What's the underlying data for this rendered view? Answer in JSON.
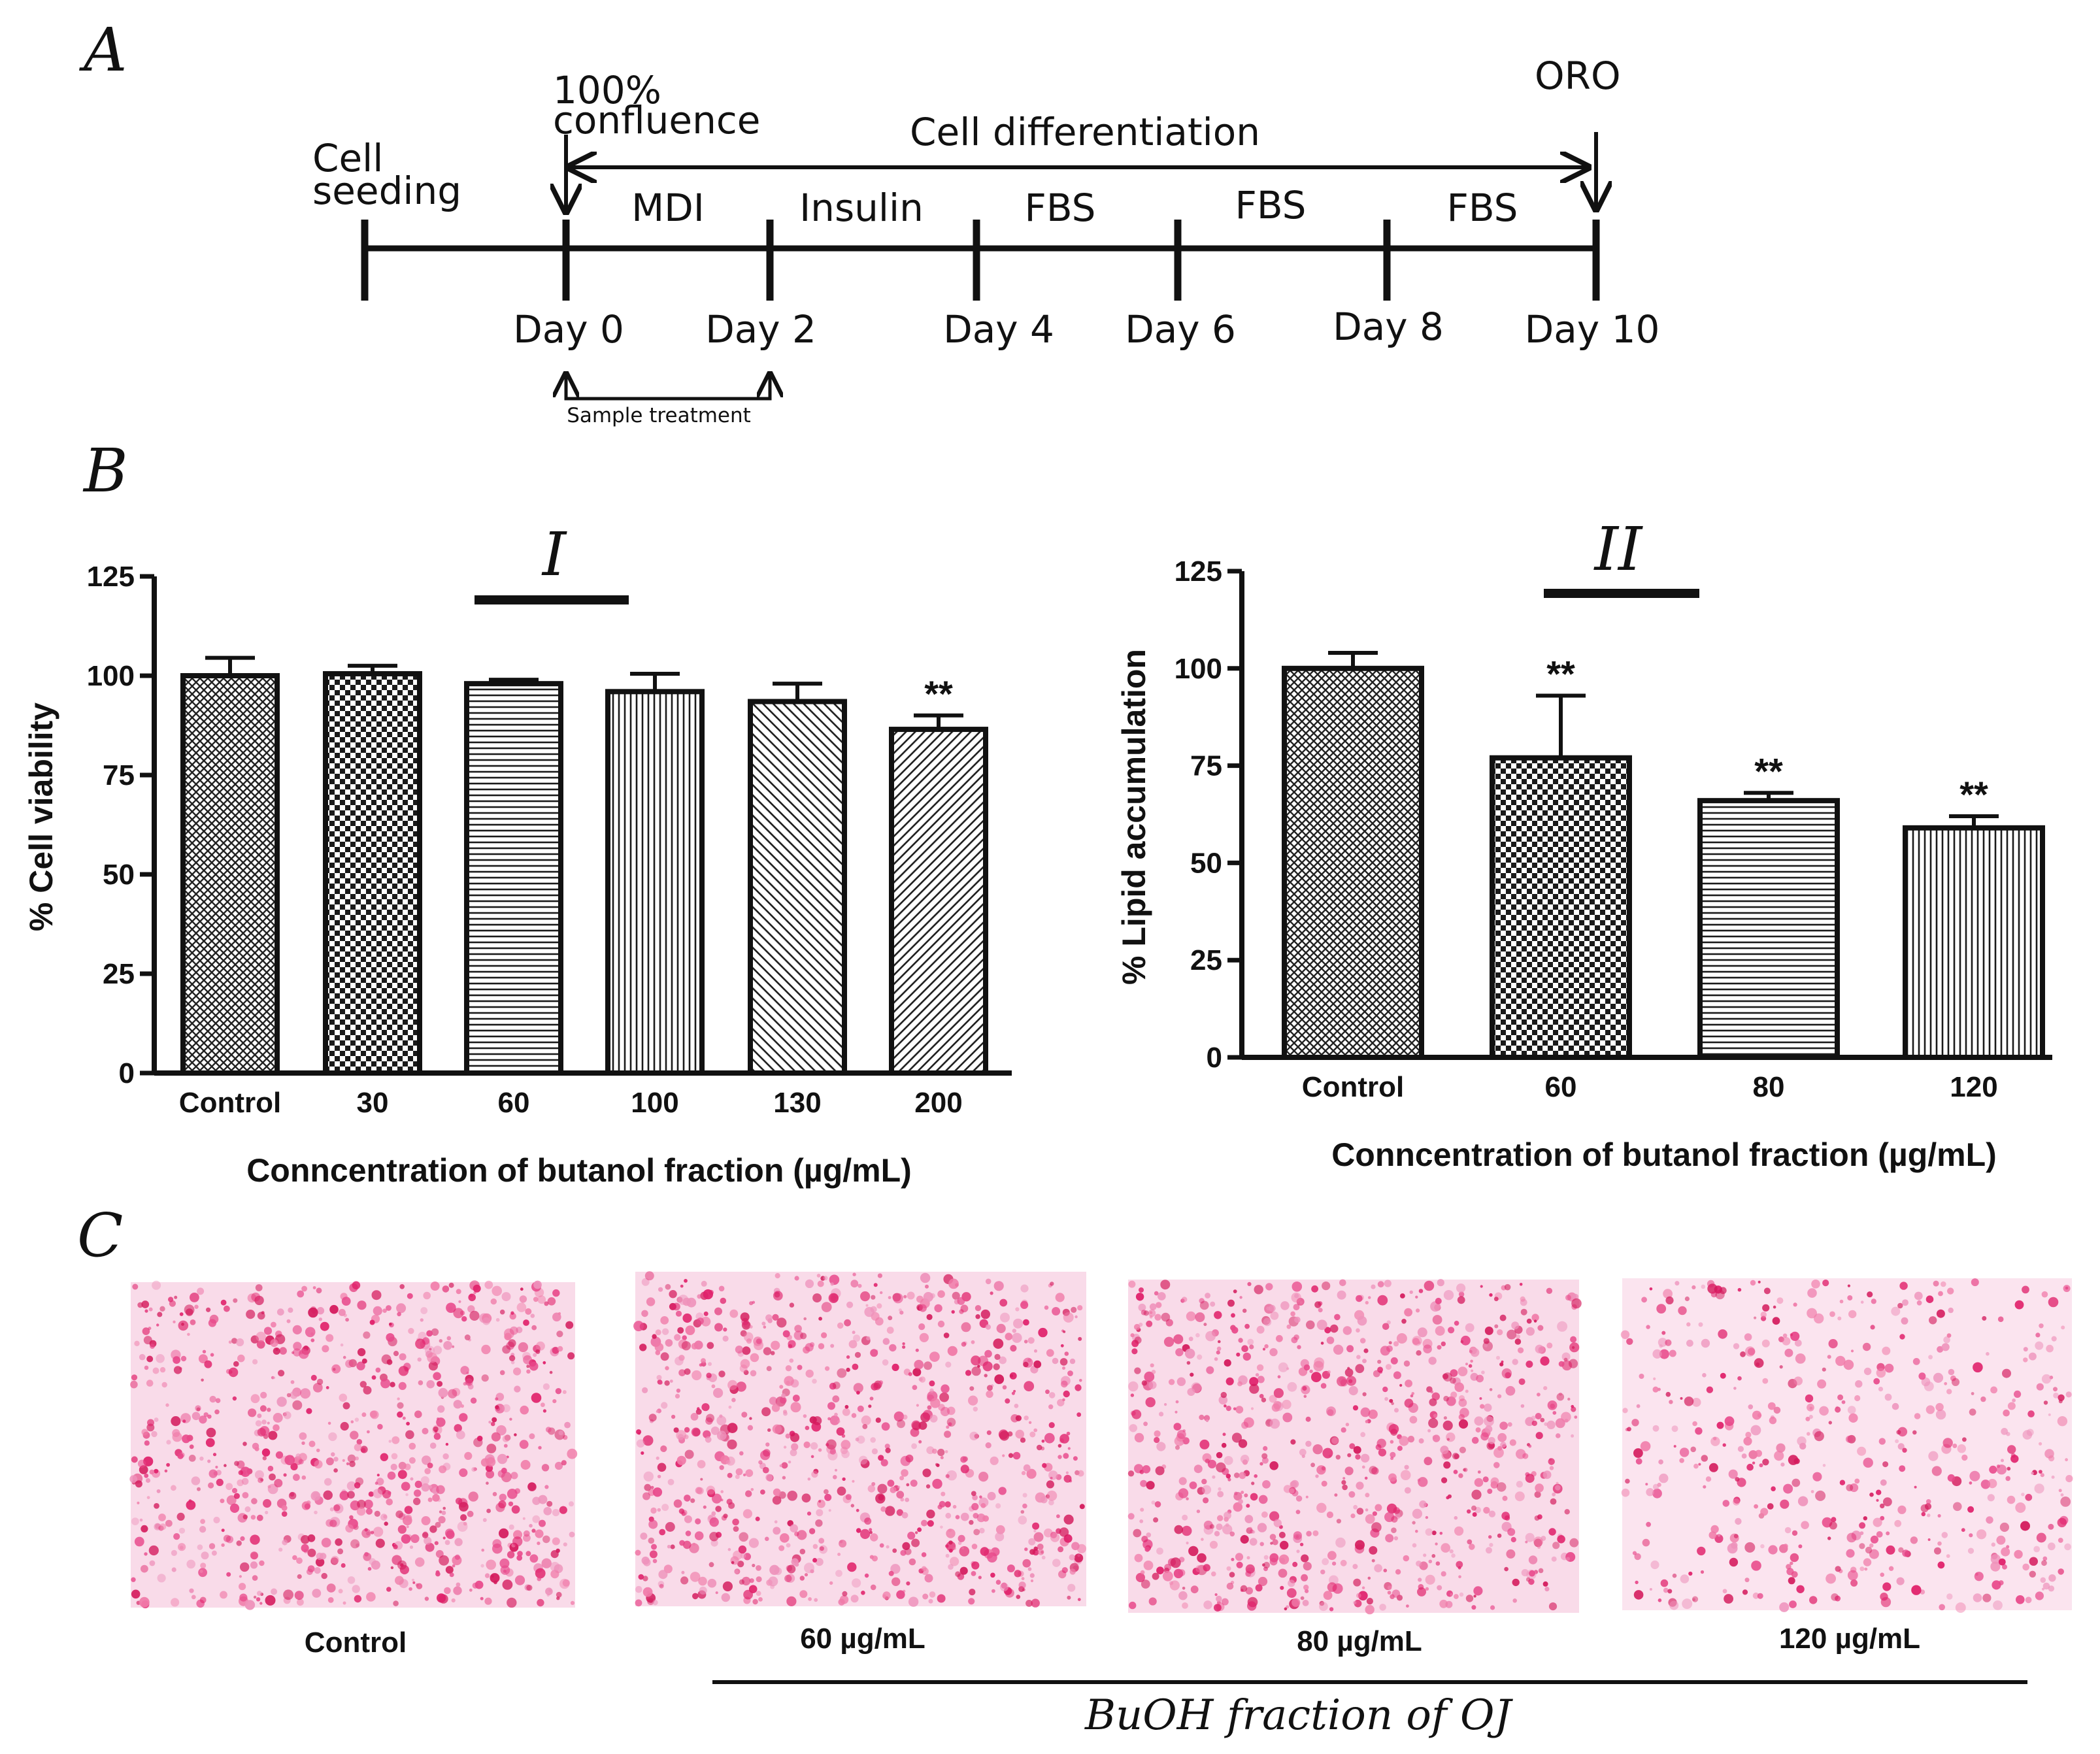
{
  "panels": {
    "a": "A",
    "b": "B",
    "c": "C"
  },
  "timeline": {
    "cell_seeding_line1": "Cell",
    "cell_seeding_line2": "seeding",
    "confluence_line1": "100%",
    "confluence_line2": "confluence",
    "differentiation": "Cell differentiation",
    "oro": "ORO",
    "stages": [
      "MDI",
      "Insulin",
      "FBS",
      "FBS",
      "FBS"
    ],
    "days": [
      "Day 0",
      "Day 2",
      "Day 4",
      "Day 6",
      "Day 8",
      "Day 10"
    ],
    "sample_treatment": "Sample treatment"
  },
  "chart_data": [
    {
      "type": "bar",
      "panel": "I",
      "categories": [
        "Control",
        "30",
        "60",
        "100",
        "130",
        "200"
      ],
      "values": [
        100,
        100.5,
        98,
        96,
        93.5,
        86.5
      ],
      "errors": [
        4.5,
        2,
        1,
        4.5,
        4.5,
        3.5
      ],
      "significance": [
        "",
        "",
        "",
        "",
        "",
        "**"
      ],
      "ylabel": "% Cell viability",
      "xlabel": "Conncentration of butanol fraction (µg/mL)",
      "ylim": [
        0,
        125
      ],
      "yticks": [
        "0",
        "25",
        "50",
        "75",
        "100",
        "125"
      ],
      "grid": false
    },
    {
      "type": "bar",
      "panel": "II",
      "categories": [
        "Control",
        "60",
        "80",
        "120"
      ],
      "values": [
        100,
        77,
        66,
        59
      ],
      "errors": [
        4,
        16,
        2,
        3
      ],
      "significance": [
        "",
        "**",
        "**",
        "**"
      ],
      "ylabel": "% Lipid accumulation",
      "xlabel": "Conncentration of butanol fraction (µg/mL)",
      "ylim": [
        0,
        125
      ],
      "yticks": [
        "0",
        "25",
        "50",
        "75",
        "100",
        "125"
      ],
      "grid": false
    }
  ],
  "images": {
    "labels": [
      "Control",
      "60  µg/mL",
      "80  µg/mL",
      "120  µg/mL"
    ],
    "group_caption": "BuOH fraction of OJ"
  },
  "colors": {
    "stain_pink": "#f2a6c6",
    "stain_dark": "#e0206a",
    "ink": "#111111"
  }
}
